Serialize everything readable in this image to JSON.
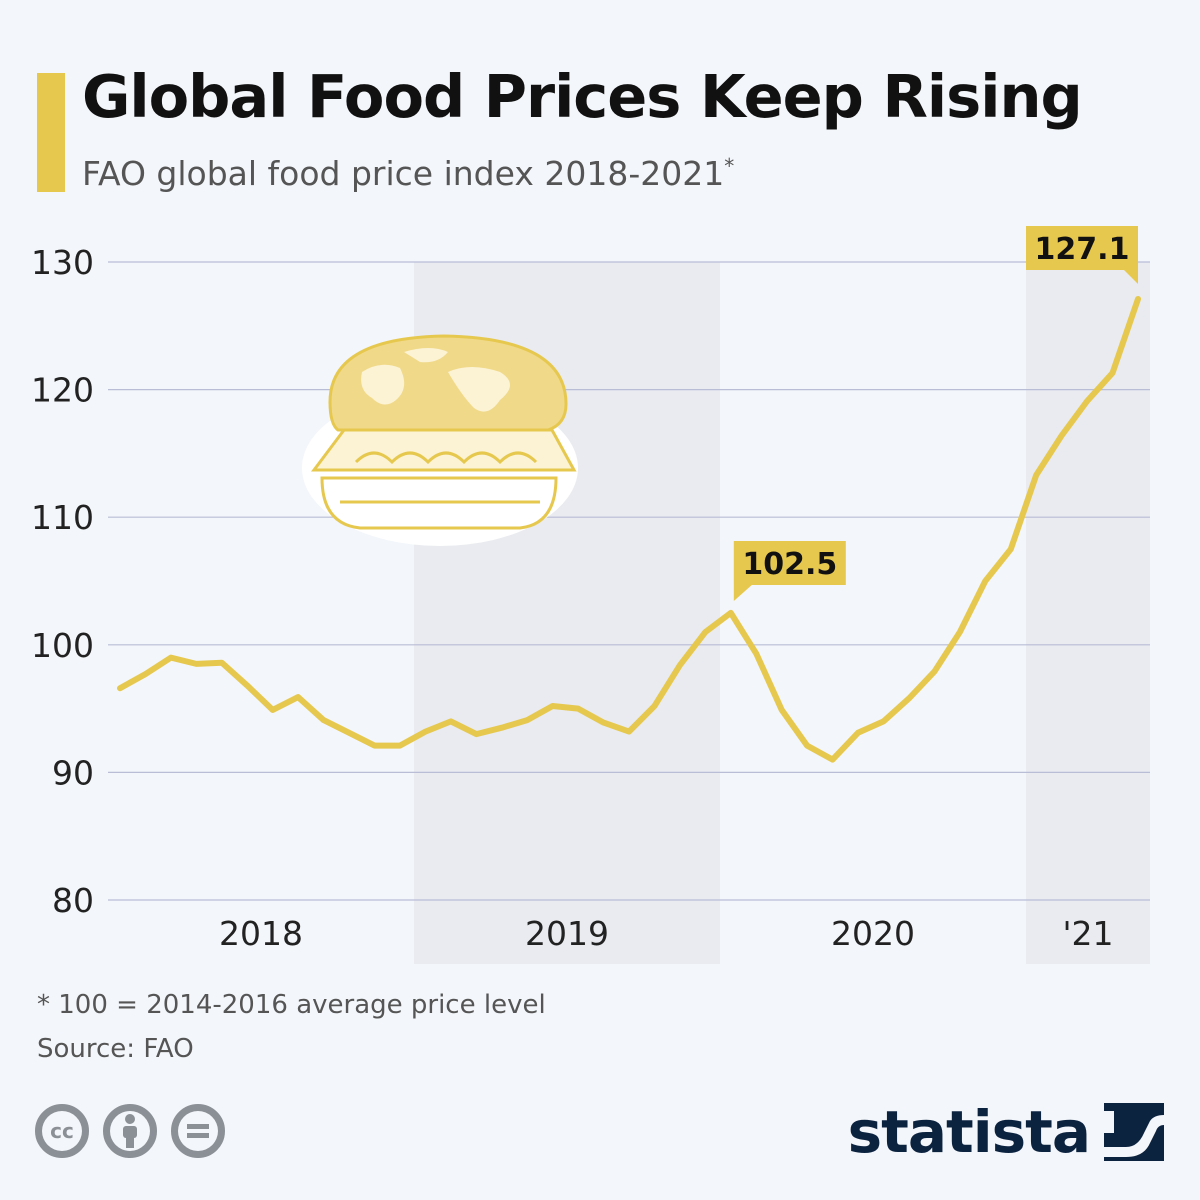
{
  "header": {
    "title": "Global Food Prices Keep Rising",
    "subtitle": "FAO global food price index 2018-2021",
    "subtitle_mark": "*"
  },
  "footer": {
    "footnote": "* 100 = 2014-2016 average price level",
    "source": "Source: FAO",
    "license_icons": [
      "creative-commons-icon",
      "attribution-icon",
      "no-derivatives-icon"
    ],
    "cc_label": "cc",
    "brand": "statista"
  },
  "colors": {
    "accent": "#e6c84f",
    "background": "#f3f6fa",
    "band": "#e9ebf0",
    "grid": "#b9bdd6",
    "brand": "#0c2340"
  },
  "chart_data": {
    "type": "line",
    "ylim": [
      80,
      130
    ],
    "yticks": [
      80,
      90,
      100,
      110,
      120,
      130
    ],
    "year_labels": [
      "2018",
      "2019",
      "2020",
      "'21"
    ],
    "shaded_years": [
      1,
      3
    ],
    "grid": true,
    "series": [
      {
        "values": [
          96.6,
          97.7,
          99.0,
          98.5,
          98.6,
          96.8,
          94.9,
          95.9,
          94.1,
          93.1,
          92.1,
          92.1,
          93.2,
          94.0,
          93.0,
          93.5,
          94.1,
          95.2,
          95.0,
          93.9,
          93.2,
          95.2,
          98.4,
          101.0,
          102.5,
          99.3,
          94.9,
          92.1,
          91.0,
          93.1,
          94.0,
          95.8,
          97.9,
          101.0,
          105.0,
          107.5,
          113.3,
          116.4,
          119.1,
          121.3,
          127.1
        ]
      }
    ],
    "annotations": [
      {
        "label": "102.5",
        "value": 102.5,
        "index": 24
      },
      {
        "label": "127.1",
        "value": 127.1,
        "index": 40
      }
    ]
  }
}
